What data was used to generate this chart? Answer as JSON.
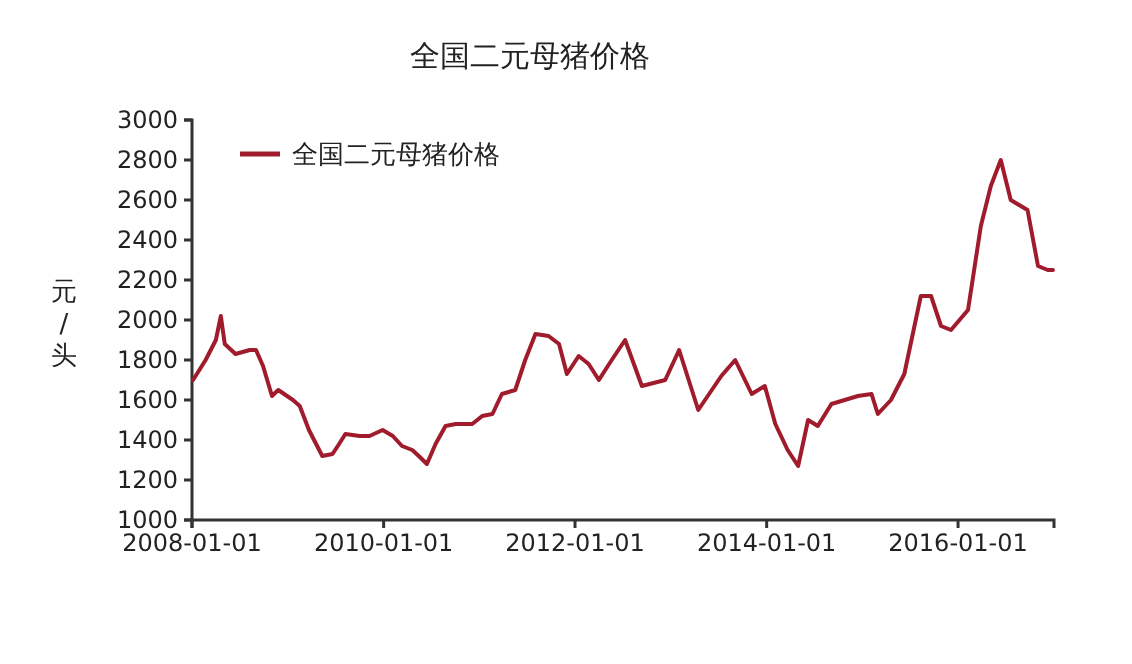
{
  "chart_data": {
    "type": "line",
    "title": "全国二元母猪价格",
    "ylabel": "元/头",
    "x": [
      "2008-01-05",
      "2008-02-22",
      "2008-04-01",
      "2008-04-20",
      "2008-05-05",
      "2008-06-15",
      "2008-08-08",
      "2008-09-01",
      "2008-09-28",
      "2008-11-01",
      "2008-11-25",
      "2009-01-20",
      "2009-02-15",
      "2009-03-22",
      "2009-05-12",
      "2009-06-20",
      "2009-07-15",
      "2009-08-08",
      "2009-10-01",
      "2009-11-08",
      "2009-12-28",
      "2010-02-05",
      "2010-03-12",
      "2010-04-20",
      "2010-05-15",
      "2010-06-15",
      "2010-07-18",
      "2010-08-25",
      "2010-10-03",
      "2010-12-05",
      "2011-01-12",
      "2011-02-20",
      "2011-03-28",
      "2011-05-18",
      "2011-06-25",
      "2011-08-03",
      "2011-09-22",
      "2011-11-01",
      "2011-12-01",
      "2012-01-15",
      "2012-02-22",
      "2012-04-01",
      "2012-05-20",
      "2012-07-10",
      "2012-09-12",
      "2012-12-10",
      "2013-02-01",
      "2013-04-15",
      "2013-07-12",
      "2013-09-03",
      "2013-11-05",
      "2013-12-25",
      "2014-02-03",
      "2014-03-22",
      "2014-05-01",
      "2014-06-08",
      "2014-07-15",
      "2014-09-05",
      "2014-12-15",
      "2015-02-05",
      "2015-03-01",
      "2015-04-20",
      "2015-06-10",
      "2015-08-12",
      "2015-09-20",
      "2015-10-28",
      "2015-12-05",
      "2016-02-08",
      "2016-03-28",
      "2016-05-05",
      "2016-06-12",
      "2016-07-20",
      "2016-09-22",
      "2016-11-01",
      "2016-12-08",
      "2016-12-28"
    ],
    "series": [
      {
        "name": "全国二元母猪价格",
        "color": "#a01c2c",
        "values": [
          1700,
          1800,
          1900,
          2020,
          1880,
          1830,
          1850,
          1850,
          1770,
          1620,
          1650,
          1600,
          1570,
          1450,
          1320,
          1330,
          1380,
          1430,
          1420,
          1420,
          1450,
          1420,
          1370,
          1350,
          1320,
          1280,
          1380,
          1470,
          1480,
          1480,
          1520,
          1530,
          1630,
          1650,
          1800,
          1930,
          1920,
          1880,
          1730,
          1820,
          1780,
          1700,
          1800,
          1900,
          1670,
          1700,
          1850,
          1550,
          1720,
          1800,
          1630,
          1670,
          1480,
          1350,
          1270,
          1500,
          1470,
          1580,
          1620,
          1630,
          1530,
          1600,
          1730,
          2120,
          2120,
          1970,
          1950,
          2050,
          2470,
          2670,
          2800,
          2600,
          2550,
          2270,
          2250,
          2250
        ]
      }
    ],
    "xlim": [
      "2008-01-01",
      "2017-01-01"
    ],
    "xticks": [
      {
        "value": "2008-01-01",
        "label": "2008-01-01"
      },
      {
        "value": "2010-01-01",
        "label": "2010-01-01"
      },
      {
        "value": "2012-01-01",
        "label": "2012-01-01"
      },
      {
        "value": "2014-01-01",
        "label": "2014-01-01"
      },
      {
        "value": "2016-01-01",
        "label": "2016-01-01"
      }
    ],
    "ylim": [
      1000,
      3000
    ],
    "yticks": [
      1000,
      1200,
      1400,
      1600,
      1800,
      2000,
      2200,
      2400,
      2600,
      2800,
      3000
    ],
    "grid": false,
    "legend": "top left",
    "marker": "none",
    "line_style": "solid"
  }
}
